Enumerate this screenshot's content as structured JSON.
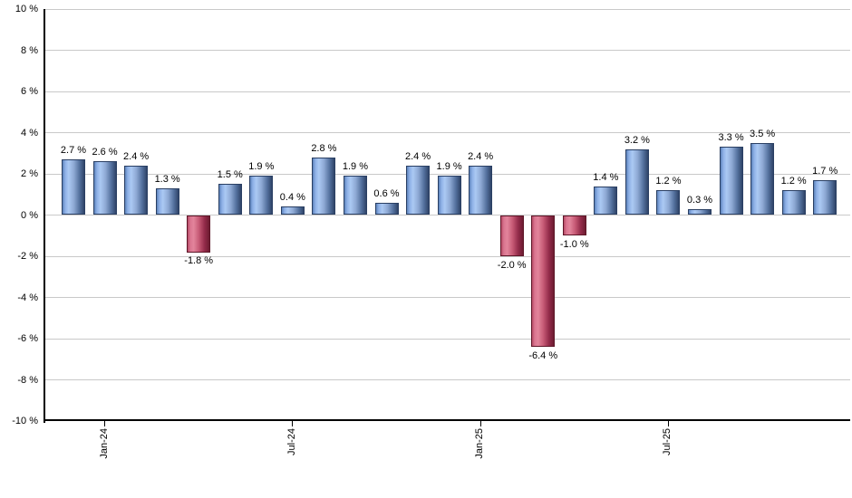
{
  "chart_data": {
    "type": "bar",
    "title": "",
    "xlabel": "",
    "ylabel": "",
    "unit": "%",
    "ylim": [
      -10,
      10
    ],
    "y_tick_step": 2,
    "grid": "horizontal",
    "legend": "none",
    "y_tick_labels": [
      "10 %",
      "8 %",
      "6 %",
      "4 %",
      "2 %",
      "0 %",
      "-2 %",
      "-4 %",
      "-6 %",
      "-8 %",
      "-10 %"
    ],
    "x_ticks": [
      {
        "label": "Jan-24",
        "bar_index": 1
      },
      {
        "label": "Jul-24",
        "bar_index": 7
      },
      {
        "label": "Jan-25",
        "bar_index": 13
      },
      {
        "label": "Jul-25",
        "bar_index": 19
      }
    ],
    "bars": [
      {
        "value": 2.7,
        "label": "2.7 %"
      },
      {
        "value": 2.6,
        "label": "2.6 %"
      },
      {
        "value": 2.4,
        "label": "2.4 %"
      },
      {
        "value": 1.3,
        "label": "1.3 %"
      },
      {
        "value": -1.8,
        "label": "-1.8 %"
      },
      {
        "value": 1.5,
        "label": "1.5 %"
      },
      {
        "value": 1.9,
        "label": "1.9 %"
      },
      {
        "value": 0.4,
        "label": "0.4 %"
      },
      {
        "value": 2.8,
        "label": "2.8 %"
      },
      {
        "value": 1.9,
        "label": "1.9 %"
      },
      {
        "value": 0.6,
        "label": "0.6 %"
      },
      {
        "value": 2.4,
        "label": "2.4 %"
      },
      {
        "value": 1.9,
        "label": "1.9 %"
      },
      {
        "value": 2.4,
        "label": "2.4 %"
      },
      {
        "value": -2.0,
        "label": "-2.0 %"
      },
      {
        "value": -6.4,
        "label": "-6.4 %"
      },
      {
        "value": -1.0,
        "label": "-1.0 %"
      },
      {
        "value": 1.4,
        "label": "1.4 %"
      },
      {
        "value": 3.2,
        "label": "3.2 %"
      },
      {
        "value": 1.2,
        "label": "1.2 %"
      },
      {
        "value": 0.3,
        "label": "0.3 %"
      },
      {
        "value": 3.3,
        "label": "3.3 %"
      },
      {
        "value": 3.5,
        "label": "3.5 %"
      },
      {
        "value": 1.2,
        "label": "1.2 %"
      },
      {
        "value": 1.7,
        "label": "1.7 %"
      }
    ],
    "colors": {
      "positive_light": "#abc9f3",
      "positive_mid": "#5d83bb",
      "positive_dark": "#2f4468",
      "negative_light": "#e2849b",
      "negative_mid": "#b54a64",
      "negative_dark": "#6d1c31",
      "gridline": "#c9c9c9",
      "axis": "#000000",
      "text": "#000000",
      "background": "#ffffff"
    }
  }
}
